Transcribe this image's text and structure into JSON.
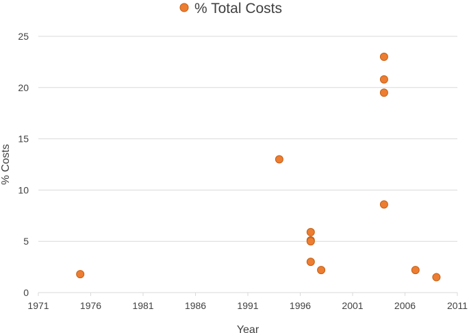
{
  "chart_data": {
    "type": "scatter",
    "xlabel": "Year",
    "ylabel": "% Costs",
    "xlim": [
      1971,
      2011
    ],
    "ylim": [
      0,
      25
    ],
    "x_ticks": [
      1971,
      1976,
      1981,
      1986,
      1991,
      1996,
      2001,
      2006,
      2011
    ],
    "y_ticks": [
      0,
      5,
      10,
      15,
      20,
      25
    ],
    "grid": "horizontal",
    "legend_position": "top",
    "series": [
      {
        "name": "% Total Costs",
        "color": "#ED7D31",
        "points": [
          {
            "x": 1975,
            "y": 1.8
          },
          {
            "x": 1994,
            "y": 13.0
          },
          {
            "x": 1997,
            "y": 5.9
          },
          {
            "x": 1997,
            "y": 5.1
          },
          {
            "x": 1997,
            "y": 5.0
          },
          {
            "x": 1997,
            "y": 3.0
          },
          {
            "x": 1998,
            "y": 2.2
          },
          {
            "x": 2004,
            "y": 23.0
          },
          {
            "x": 2004,
            "y": 20.8
          },
          {
            "x": 2004,
            "y": 19.5
          },
          {
            "x": 2004,
            "y": 8.6
          },
          {
            "x": 2007,
            "y": 2.2
          },
          {
            "x": 2009,
            "y": 1.5
          }
        ]
      }
    ]
  }
}
